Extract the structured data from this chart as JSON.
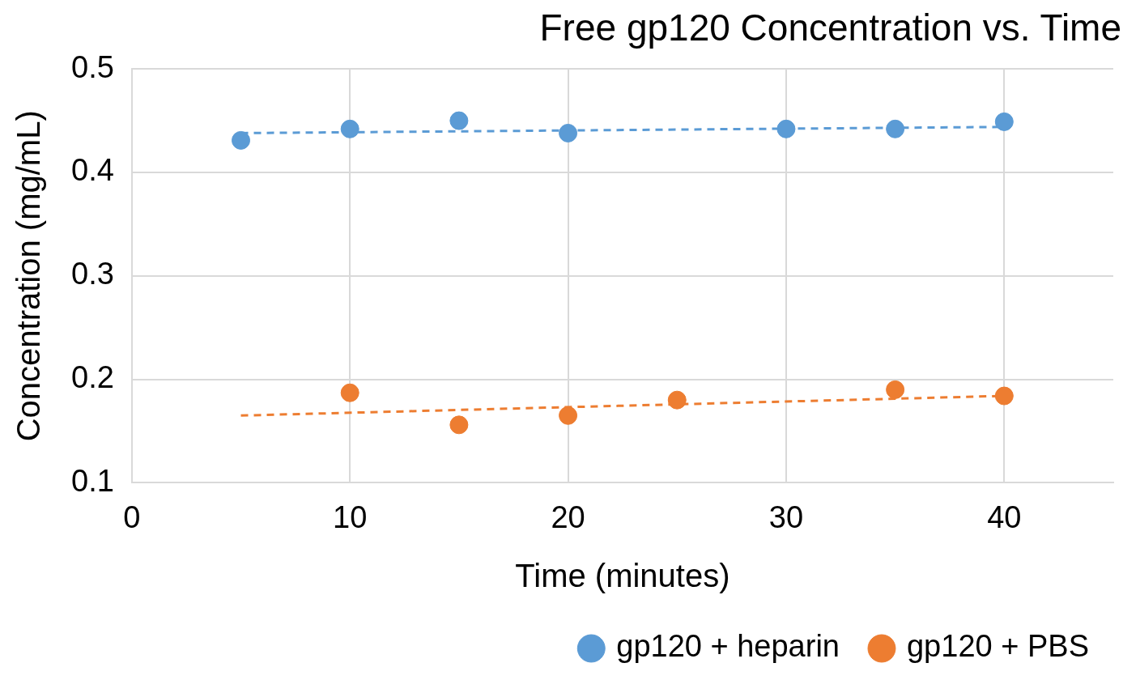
{
  "chart_data": {
    "type": "scatter",
    "title": "Free gp120 Concentration vs. Time",
    "xlabel": "Time (minutes)",
    "ylabel": "Concentration (mg/mL)",
    "xlim": [
      0,
      45
    ],
    "xticks": [
      0,
      10,
      20,
      30,
      40
    ],
    "ylim": [
      0.1,
      0.5
    ],
    "yticks": [
      0.1,
      0.2,
      0.3,
      0.4,
      0.5
    ],
    "grid": true,
    "legend": "bottom",
    "marker": "circle",
    "series": [
      {
        "name": "gp120 + heparin",
        "color": "#5b9bd5",
        "x": [
          5,
          10,
          15,
          20,
          30,
          35,
          40
        ],
        "values": [
          0.431,
          0.442,
          0.45,
          0.438,
          0.442,
          0.442,
          0.449
        ]
      },
      {
        "name": "gp120 + PBS",
        "color": "#ed7d31",
        "x": [
          10,
          15,
          20,
          25,
          35,
          40
        ],
        "values": [
          0.187,
          0.156,
          0.165,
          0.18,
          0.19,
          0.184
        ]
      },
      {
        "type": "line",
        "line_style": "dashed",
        "marker": "none",
        "color": "#5b9bd5",
        "x": [
          5,
          40
        ],
        "values": [
          0.438,
          0.444
        ]
      },
      {
        "type": "line",
        "line_style": "dashed",
        "marker": "none",
        "color": "#ed7d31",
        "x": [
          5,
          40
        ],
        "values": [
          0.165,
          0.184
        ]
      }
    ]
  }
}
